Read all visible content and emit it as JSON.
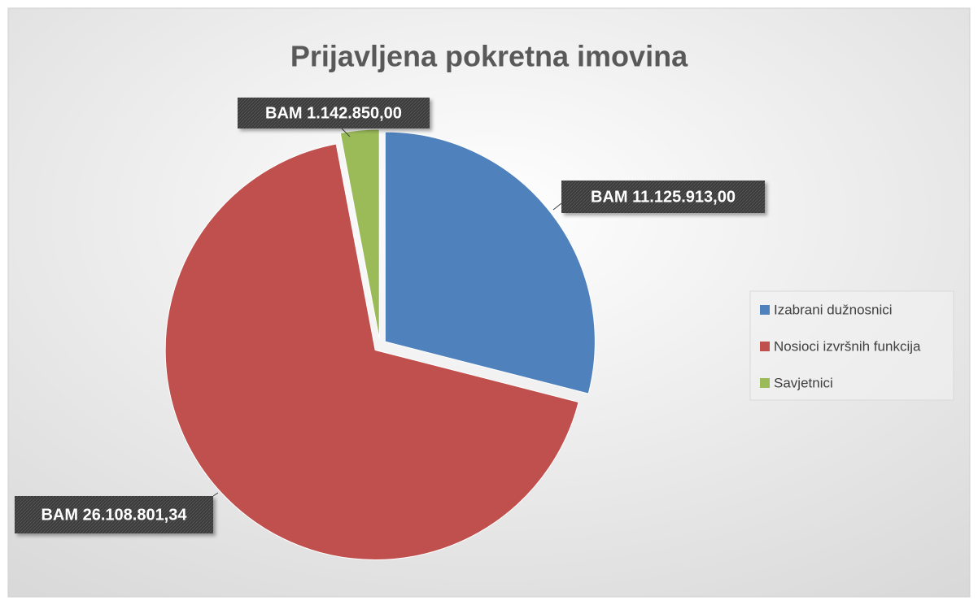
{
  "chart_data": {
    "type": "pie",
    "title": "Prijavljena pokretna imovina",
    "categories": [
      "Izabrani dužnosnici",
      "Nosioci izvršnih funkcija",
      "Savjetnici"
    ],
    "values": [
      11125913.0,
      26108801.34,
      1142850.0
    ],
    "value_labels": [
      "BAM 11.125.913,00",
      "BAM 26.108.801,34",
      "BAM 1.142.850,00"
    ],
    "colors": [
      "#4f81bd",
      "#c0504d",
      "#9bbb59"
    ],
    "legend": "right"
  }
}
